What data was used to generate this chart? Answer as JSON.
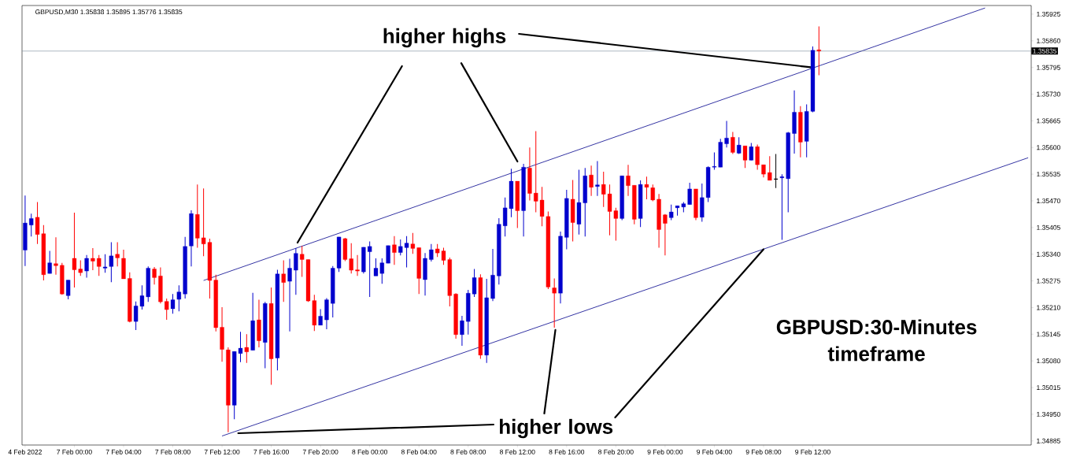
{
  "chart_data": {
    "type": "candlestick",
    "title": "GBPUSD,M30  1.35838 1.35895 1.35776 1.35835",
    "categories": [
      "4 Feb 2022",
      null,
      null,
      null,
      null,
      null,
      null,
      null,
      "7 Feb 00:00",
      null,
      null,
      null,
      null,
      null,
      null,
      null,
      "7 Feb 04:00",
      null,
      null,
      null,
      null,
      null,
      null,
      null,
      "7 Feb 08:00",
      null,
      null,
      null,
      null,
      null,
      null,
      null,
      "7 Feb 12:00",
      null,
      null,
      null,
      null,
      null,
      null,
      null,
      "7 Feb 16:00",
      null,
      null,
      null,
      null,
      null,
      null,
      null,
      "7 Feb 20:00",
      null,
      null,
      null,
      null,
      null,
      null,
      null,
      "8 Feb 00:00",
      null,
      null,
      null,
      null,
      null,
      null,
      null,
      "8 Feb 04:00",
      null,
      null,
      null,
      null,
      null,
      null,
      null,
      "8 Feb 08:00",
      null,
      null,
      null,
      null,
      null,
      null,
      null,
      "8 Feb 12:00",
      null,
      null,
      null,
      null,
      null,
      null,
      null,
      "8 Feb 16:00",
      null,
      null,
      null,
      null,
      null,
      null,
      null,
      "8 Feb 20:00",
      null,
      null,
      null,
      null,
      null,
      null,
      null,
      "9 Feb 00:00",
      null,
      null,
      null,
      null,
      null,
      null,
      null,
      "9 Feb 04:00",
      null,
      null,
      null,
      null,
      null,
      null,
      null,
      "9 Feb 08:00",
      null,
      null,
      null,
      null,
      null,
      null,
      null,
      "9 Feb 12:00",
      null,
      null,
      null,
      null,
      null,
      null,
      null,
      null,
      null,
      null,
      null,
      null,
      null,
      null,
      null,
      null,
      null,
      null,
      null,
      null,
      null,
      null,
      null,
      null,
      null,
      null,
      null,
      null,
      null,
      null,
      null,
      null,
      null,
      null,
      null
    ],
    "ohlc": [
      [
        1.3535,
        1.35483,
        1.35311,
        1.35416
      ],
      [
        1.35411,
        1.35439,
        1.35383,
        1.35427
      ],
      [
        1.3543,
        1.35467,
        1.35365,
        1.35388
      ],
      [
        1.3539,
        1.35411,
        1.35276,
        1.3529
      ],
      [
        1.35293,
        1.35348,
        1.35293,
        1.35319
      ],
      [
        1.35317,
        1.35381,
        1.3529,
        1.35312
      ],
      [
        1.35313,
        1.35319,
        1.35241,
        1.35243
      ],
      [
        1.35239,
        1.35277,
        1.3523,
        1.35277
      ],
      [
        1.3533,
        1.35441,
        1.35259,
        1.35302
      ],
      [
        1.35304,
        1.35325,
        1.35287,
        1.35295
      ],
      [
        1.35299,
        1.35338,
        1.35283,
        1.3533
      ],
      [
        1.3533,
        1.35355,
        1.35301,
        1.35323
      ],
      [
        1.3533,
        1.35338,
        1.35287,
        1.3531
      ],
      [
        1.35306,
        1.3534,
        1.35295,
        1.35309
      ],
      [
        1.3531,
        1.35369,
        1.35272,
        1.35336
      ],
      [
        1.3534,
        1.35369,
        1.3531,
        1.35331
      ],
      [
        1.3533,
        1.35351,
        1.3528,
        1.3528
      ],
      [
        1.35281,
        1.35296,
        1.35174,
        1.35176
      ],
      [
        1.35176,
        1.35225,
        1.35155,
        1.35214
      ],
      [
        1.35213,
        1.35264,
        1.35205,
        1.35239
      ],
      [
        1.35236,
        1.3531,
        1.35224,
        1.35306
      ],
      [
        1.35304,
        1.35309,
        1.35266,
        1.35283
      ],
      [
        1.35287,
        1.35308,
        1.3522,
        1.35224
      ],
      [
        1.35225,
        1.35232,
        1.3518,
        1.35205
      ],
      [
        1.35207,
        1.35243,
        1.35195,
        1.35229
      ],
      [
        1.3523,
        1.35264,
        1.35201,
        1.35248
      ],
      [
        1.35243,
        1.35382,
        1.35232,
        1.35359
      ],
      [
        1.3536,
        1.35447,
        1.3531,
        1.35439
      ],
      [
        1.35437,
        1.3551,
        1.35356,
        1.35379
      ],
      [
        1.3538,
        1.355,
        1.35335,
        1.35365
      ],
      [
        1.35369,
        1.35378,
        1.35232,
        1.35276
      ],
      [
        1.35277,
        1.3529,
        1.35152,
        1.35161
      ],
      [
        1.35162,
        1.35211,
        1.35078,
        1.35108
      ],
      [
        1.35107,
        1.35113,
        1.34906,
        1.34972
      ],
      [
        1.34972,
        1.35103,
        1.34938,
        1.35103
      ],
      [
        1.35098,
        1.35151,
        1.35077,
        1.35111
      ],
      [
        1.35113,
        1.35145,
        1.35075,
        1.35102
      ],
      [
        1.35106,
        1.35246,
        1.35106,
        1.35178
      ],
      [
        1.3518,
        1.35229,
        1.35113,
        1.35129
      ],
      [
        1.35125,
        1.35224,
        1.35062,
        1.3522
      ],
      [
        1.3522,
        1.35259,
        1.35022,
        1.35085
      ],
      [
        1.35087,
        1.35302,
        1.35057,
        1.35292
      ],
      [
        1.35292,
        1.35325,
        1.35224,
        1.35271
      ],
      [
        1.35274,
        1.35329,
        1.35152,
        1.35306
      ],
      [
        1.35301,
        1.35355,
        1.35241,
        1.35342
      ],
      [
        1.3534,
        1.3536,
        1.35285,
        1.35327
      ],
      [
        1.35327,
        1.35327,
        1.35224,
        1.35226
      ],
      [
        1.35227,
        1.35241,
        1.35153,
        1.35167
      ],
      [
        1.35167,
        1.35206,
        1.35167,
        1.35189
      ],
      [
        1.3518,
        1.35233,
        1.35157,
        1.35229
      ],
      [
        1.3522,
        1.35311,
        1.35186,
        1.35306
      ],
      [
        1.35306,
        1.35382,
        1.35297,
        1.35382
      ],
      [
        1.35378,
        1.3538,
        1.35323,
        1.35327
      ],
      [
        1.35329,
        1.35367,
        1.35293,
        1.35301
      ],
      [
        1.35302,
        1.35338,
        1.35287,
        1.35299
      ],
      [
        1.35297,
        1.35357,
        1.35293,
        1.35357
      ],
      [
        1.35346,
        1.35371,
        1.35236,
        1.35359
      ],
      [
        1.35287,
        1.3533,
        1.35287,
        1.35306
      ],
      [
        1.35293,
        1.3533,
        1.35268,
        1.35319
      ],
      [
        1.35318,
        1.35361,
        1.35318,
        1.35361
      ],
      [
        1.35363,
        1.35384,
        1.35314,
        1.35344
      ],
      [
        1.35344,
        1.35376,
        1.35337,
        1.35359
      ],
      [
        1.35356,
        1.35384,
        1.35308,
        1.35367
      ],
      [
        1.35365,
        1.35392,
        1.35341,
        1.35354
      ],
      [
        1.35356,
        1.35356,
        1.35243,
        1.35281
      ],
      [
        1.35278,
        1.35343,
        1.35239,
        1.3533
      ],
      [
        1.35327,
        1.35365,
        1.35322,
        1.35351
      ],
      [
        1.35353,
        1.35365,
        1.35333,
        1.35343
      ],
      [
        1.35348,
        1.35356,
        1.35314,
        1.35325
      ],
      [
        1.35327,
        1.35332,
        1.35213,
        1.35239
      ],
      [
        1.35243,
        1.35245,
        1.35134,
        1.35144
      ],
      [
        1.35144,
        1.3519,
        1.35117,
        1.35178
      ],
      [
        1.35176,
        1.35253,
        1.35144,
        1.35245
      ],
      [
        1.35243,
        1.35304,
        1.35236,
        1.35283
      ],
      [
        1.35283,
        1.35291,
        1.35085,
        1.35094
      ],
      [
        1.35094,
        1.3528,
        1.35075,
        1.35234
      ],
      [
        1.35232,
        1.35353,
        1.35226,
        1.35289
      ],
      [
        1.35287,
        1.35428,
        1.35266,
        1.35413
      ],
      [
        1.35409,
        1.35478,
        1.35383,
        1.35453
      ],
      [
        1.35451,
        1.35548,
        1.3543,
        1.35518
      ],
      [
        1.35518,
        1.35518,
        1.35404,
        1.35446
      ],
      [
        1.35446,
        1.3556,
        1.35383,
        1.35552
      ],
      [
        1.3555,
        1.356,
        1.35471,
        1.35488
      ],
      [
        1.35489,
        1.3564,
        1.35442,
        1.35469
      ],
      [
        1.35472,
        1.35504,
        1.35408,
        1.35432
      ],
      [
        1.35432,
        1.35444,
        1.35255,
        1.3526
      ],
      [
        1.35258,
        1.35281,
        1.35161,
        1.35245
      ],
      [
        1.35245,
        1.35395,
        1.3522,
        1.35384
      ],
      [
        1.35381,
        1.35497,
        1.35352,
        1.35476
      ],
      [
        1.35474,
        1.35521,
        1.35371,
        1.35417
      ],
      [
        1.35413,
        1.35546,
        1.35388,
        1.35466
      ],
      [
        1.35465,
        1.3555,
        1.35383,
        1.35531
      ],
      [
        1.35533,
        1.35556,
        1.35482,
        1.35503
      ],
      [
        1.35505,
        1.35567,
        1.35482,
        1.35509
      ],
      [
        1.3551,
        1.35541,
        1.35455,
        1.35486
      ],
      [
        1.35487,
        1.3551,
        1.35386,
        1.35444
      ],
      [
        1.35446,
        1.35453,
        1.35373,
        1.35427
      ],
      [
        1.35427,
        1.35531,
        1.35423,
        1.35531
      ],
      [
        1.35531,
        1.35558,
        1.35482,
        1.35507
      ],
      [
        1.35508,
        1.35508,
        1.35413,
        1.35425
      ],
      [
        1.35427,
        1.3552,
        1.35406,
        1.3551
      ],
      [
        1.3551,
        1.35529,
        1.35474,
        1.35503
      ],
      [
        1.35502,
        1.3551,
        1.35469,
        1.35472
      ],
      [
        1.35474,
        1.35487,
        1.35356,
        1.354
      ],
      [
        1.35436,
        1.35438,
        1.35337,
        1.35415
      ],
      [
        1.35429,
        1.35461,
        1.35423,
        1.35443
      ],
      [
        1.35453,
        1.35458,
        1.35434,
        1.35458
      ],
      [
        1.35455,
        1.35467,
        1.35442,
        1.35463
      ],
      [
        1.35461,
        1.35514,
        1.35461,
        1.35499
      ],
      [
        1.35499,
        1.35499,
        1.35423,
        1.35429
      ],
      [
        1.3543,
        1.35512,
        1.35419,
        1.35478
      ],
      [
        1.35478,
        1.35554,
        1.35467,
        1.35552
      ],
      [
        1.35552,
        1.35588,
        1.35546,
        1.35554
      ],
      [
        1.35552,
        1.35621,
        1.35552,
        1.35613
      ],
      [
        1.35609,
        1.35665,
        1.356,
        1.35623
      ],
      [
        1.35625,
        1.35638,
        1.35584,
        1.35588
      ],
      [
        1.35586,
        1.35625,
        1.35584,
        1.35606
      ],
      [
        1.35604,
        1.35604,
        1.3555,
        1.35569
      ],
      [
        1.35569,
        1.35611,
        1.35569,
        1.35602
      ],
      [
        1.35602,
        1.35607,
        1.35546,
        1.35558
      ],
      [
        1.35558,
        1.35558,
        1.35527,
        1.35535
      ],
      [
        1.35539,
        1.35579,
        1.3552,
        1.3552
      ],
      [
        1.35523,
        1.35584,
        1.35501,
        1.35523
      ],
      [
        1.35526,
        1.35535,
        1.35375,
        1.35529
      ],
      [
        1.35524,
        1.35638,
        1.35442,
        1.35636
      ],
      [
        1.35634,
        1.35739,
        1.35585,
        1.35686
      ],
      [
        1.35686,
        1.35701,
        1.35576,
        1.35613
      ],
      [
        1.35615,
        1.35705,
        1.35576,
        1.35688
      ],
      [
        1.35688,
        1.35846,
        1.35686,
        1.35837
      ],
      [
        1.35838,
        1.35895,
        1.35776,
        1.35835
      ],
      null,
      null,
      null,
      null,
      null,
      null,
      null,
      null,
      null,
      null,
      null,
      null,
      null,
      null,
      null,
      null,
      null,
      null,
      null,
      null,
      null,
      null,
      null,
      null,
      null,
      null,
      null,
      null,
      null,
      null,
      null,
      null,
      null,
      null
    ],
    "colors": [
      "#0000cd",
      "#0000cd",
      "#ff0000",
      "#ff0000",
      "#0000cd",
      "#ff0000",
      "#ff0000",
      "#0000cd",
      "#ff0000",
      "#ff0000",
      "#0000cd",
      "#ff0000",
      "#ff0000",
      "#0000cd",
      "#0000cd",
      "#ff0000",
      "#ff0000",
      "#ff0000",
      "#0000cd",
      "#0000cd",
      "#0000cd",
      "#ff0000",
      "#ff0000",
      "#ff0000",
      "#0000cd",
      "#0000cd",
      "#0000cd",
      "#0000cd",
      "#ff0000",
      "#ff0000",
      "#ff0000",
      "#ff0000",
      "#ff0000",
      "#ff0000",
      "#0000cd",
      "#0000cd",
      "#ff0000",
      "#0000cd",
      "#ff0000",
      "#0000cd",
      "#ff0000",
      "#0000cd",
      "#ff0000",
      "#0000cd",
      "#0000cd",
      "#ff0000",
      "#ff0000",
      "#ff0000",
      "#0000cd",
      "#0000cd",
      "#0000cd",
      "#0000cd",
      "#ff0000",
      "#ff0000",
      "#ff0000",
      "#0000cd",
      "#0000cd",
      "#0000cd",
      "#0000cd",
      "#0000cd",
      "#ff0000",
      "#0000cd",
      "#0000cd",
      "#ff0000",
      "#ff0000",
      "#0000cd",
      "#0000cd",
      "#ff0000",
      "#ff0000",
      "#ff0000",
      "#ff0000",
      "#0000cd",
      "#0000cd",
      "#0000cd",
      "#ff0000",
      "#0000cd",
      "#0000cd",
      "#0000cd",
      "#0000cd",
      "#0000cd",
      "#ff0000",
      "#0000cd",
      "#ff0000",
      "#ff0000",
      "#ff0000",
      "#ff0000",
      "#ff0000",
      "#0000cd",
      "#0000cd",
      "#ff0000",
      "#0000cd",
      "#0000cd",
      "#ff0000",
      "#0000cd",
      "#ff0000",
      "#ff0000",
      "#ff0000",
      "#0000cd",
      "#ff0000",
      "#ff0000",
      "#0000cd",
      "#ff0000",
      "#ff0000",
      "#ff0000",
      "#ff0000",
      "#0000cd",
      "#0000cd",
      "#0000cd",
      "#0000cd",
      "#ff0000",
      "#0000cd",
      "#0000cd",
      "#0000cd",
      "#0000cd",
      "#0000cd",
      "#ff0000",
      "#0000cd",
      "#ff0000",
      "#0000cd",
      "#ff0000",
      "#ff0000",
      "#ff0000",
      "#000000",
      "#0000cd",
      "#0000cd",
      "#0000cd",
      "#ff0000",
      "#0000cd",
      "#0000cd",
      "#ff0000",
      null,
      null,
      null,
      null,
      null,
      null,
      null,
      null,
      null,
      null,
      null,
      null,
      null,
      null,
      null,
      null,
      null,
      null,
      null,
      null,
      null,
      null,
      null,
      null,
      null,
      null,
      null,
      null,
      null,
      null,
      null,
      null,
      null,
      null
    ],
    "series": [
      {
        "type": "line",
        "color": "#00008b",
        "values": [
          null,
          null,
          null,
          null,
          null,
          null,
          null,
          null,
          null,
          null,
          null,
          null,
          null,
          null,
          null,
          null,
          null,
          null,
          null,
          null,
          null,
          null,
          null,
          null,
          null,
          null,
          null,
          null,
          null,
          1.35276,
          null,
          null,
          null,
          null,
          null,
          null,
          null,
          null,
          null,
          null,
          null,
          null,
          null,
          null,
          null,
          null,
          null,
          null,
          null,
          null,
          null,
          null,
          null,
          null,
          null,
          null,
          null,
          null,
          null,
          null,
          null,
          null,
          null,
          null,
          null,
          null,
          null,
          null,
          null,
          null,
          null,
          null,
          null,
          null,
          null,
          null,
          null,
          null,
          null,
          null,
          null,
          null,
          null,
          null,
          null,
          null,
          null,
          null,
          null,
          null,
          null,
          null,
          null,
          null,
          null,
          null,
          null,
          null,
          null,
          null,
          null,
          null,
          null,
          null,
          null,
          null,
          null,
          null,
          null,
          null,
          null,
          null,
          null,
          null,
          null,
          null,
          null,
          null,
          null,
          null,
          null,
          null,
          null,
          null,
          null,
          null,
          null,
          null,
          null,
          null,
          null,
          null,
          null,
          null,
          null,
          null,
          null,
          null,
          null,
          null,
          null,
          null,
          null,
          null,
          null,
          null,
          null,
          null,
          null,
          null,
          null,
          null,
          null,
          null,
          null,
          null,
          1.3594,
          null,
          null,
          null,
          null,
          null,
          null,
          null
        ]
      },
      {
        "type": "line",
        "color": "#00008b",
        "values": [
          null,
          null,
          null,
          null,
          null,
          null,
          null,
          null,
          null,
          null,
          null,
          null,
          null,
          null,
          null,
          null,
          null,
          null,
          null,
          null,
          null,
          null,
          null,
          null,
          null,
          null,
          null,
          null,
          null,
          null,
          null,
          null,
          1.34897,
          null,
          null,
          null,
          null,
          null,
          null,
          null,
          null,
          null,
          null,
          null,
          null,
          null,
          null,
          null,
          null,
          null,
          null,
          null,
          null,
          null,
          null,
          null,
          null,
          null,
          null,
          null,
          null,
          null,
          null,
          null,
          null,
          null,
          null,
          null,
          null,
          null,
          null,
          null,
          null,
          null,
          null,
          null,
          null,
          null,
          null,
          null,
          null,
          null,
          null,
          null,
          null,
          null,
          null,
          null,
          null,
          null,
          null,
          null,
          null,
          null,
          null,
          null,
          null,
          null,
          null,
          null,
          null,
          null,
          null,
          null,
          null,
          null,
          null,
          null,
          null,
          null,
          null,
          null,
          null,
          null,
          null,
          null,
          null,
          null,
          null,
          null,
          null,
          null,
          null,
          null,
          null,
          null,
          null,
          null,
          null,
          null,
          null,
          null,
          null,
          null,
          null,
          null,
          null,
          null,
          null,
          null,
          null,
          null,
          null,
          null,
          null,
          null,
          null,
          null,
          null,
          null,
          null,
          null,
          null,
          null,
          null,
          null,
          null,
          null,
          null,
          null,
          null,
          null,
          null,
          1.35575
        ]
      }
    ],
    "ref_lines": [
      {
        "axis": "y",
        "value": 1.35835,
        "label": "1.35835",
        "color": "#778899"
      }
    ],
    "annotations": [
      {
        "text": "higher highs",
        "x": "9 Feb 12:00",
        "y": 1.35795
      },
      {
        "text": "higher lows",
        "x": "9 Feb 08:00",
        "y": 1.35352
      },
      "GBPUSD:30-Minutes timeframe"
    ],
    "ylim": [
      1.34875,
      1.35946
    ],
    "yticks": [
      1.34885,
      {
        "value": 1.3495,
        "label": "1.34950"
      },
      1.35015,
      {
        "value": 1.3508,
        "label": "1.35080"
      },
      1.35145,
      {
        "value": 1.3521,
        "label": "1.35210"
      },
      1.35275,
      {
        "value": 1.3534,
        "label": "1.35340"
      },
      1.35405,
      {
        "value": 1.3547,
        "label": "1.35470"
      },
      1.35535,
      {
        "value": 1.356,
        "label": "1.35600"
      },
      1.35665,
      {
        "value": 1.3573,
        "label": "1.35730"
      },
      1.35795,
      {
        "value": 1.3586,
        "label": "1.35860"
      },
      1.35925
    ]
  }
}
